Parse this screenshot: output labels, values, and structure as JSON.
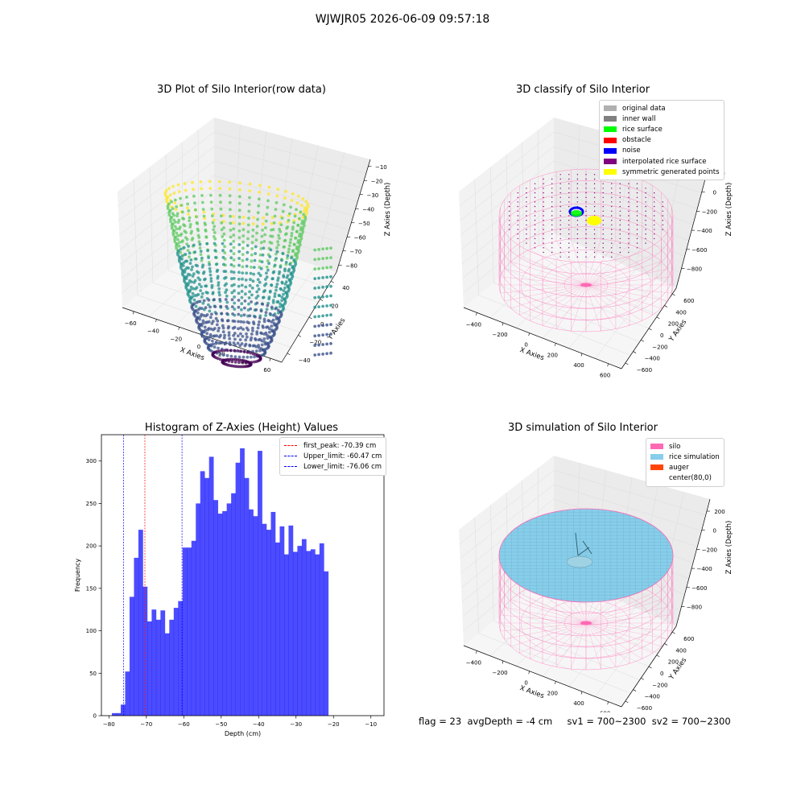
{
  "figure": {
    "suptitle": "WJWJR05 2026-06-09 09:57:18",
    "info_line": {
      "flag": "flag = 23",
      "avg_depth": "avgDepth = -4 cm",
      "sv1": "sv1 = 700~2300",
      "sv2": "sv2 = 700~2300"
    }
  },
  "chart_data": [
    {
      "id": "raw3d",
      "type": "scatter",
      "projection": "3d",
      "title": "3D Plot of Silo Interior(row data)",
      "xlabel": "X Axies",
      "ylabel": "Y Axies",
      "zlabel": "Z Axies (Depth)",
      "xlim": [
        -60,
        60
      ],
      "ylim": [
        -40,
        40
      ],
      "zlim": [
        -85,
        -5
      ],
      "x_ticks": [
        "−60",
        "−40",
        "−20",
        "0",
        "20",
        "40",
        "60"
      ],
      "y_ticks": [
        "−40",
        "−20",
        "0",
        "20",
        "40"
      ],
      "z_ticks": [
        "−10",
        "−20",
        "−30",
        "−40",
        "−50",
        "−60",
        "−70",
        "−80"
      ],
      "colormap": [
        "#440154",
        "#3b528b",
        "#21918c",
        "#5ec962",
        "#fde725"
      ],
      "surface": {
        "shape": "bowl",
        "rim_radius": 40,
        "rim_depth": -10,
        "bottom_radius": 8,
        "bottom_depth": -80,
        "side_lobe": {
          "x": 48,
          "y": 0,
          "depth_range": [
            -70,
            -25
          ]
        }
      }
    },
    {
      "id": "classify3d",
      "type": "scatter",
      "projection": "3d",
      "title": "3D classify of Silo Interior",
      "xlabel": "X Axies",
      "ylabel": "Y Axies",
      "zlabel": "Z Axies (Depth)",
      "xlim": [
        -500,
        700
      ],
      "ylim": [
        -600,
        600
      ],
      "zlim": [
        -800,
        200
      ],
      "x_ticks": [
        "−400",
        "−200",
        "0",
        "200",
        "400",
        "600"
      ],
      "y_ticks": [
        "−600",
        "−400",
        "−200",
        "0",
        "200",
        "400",
        "600"
      ],
      "z_ticks": [
        "200",
        "0",
        "−200",
        "−400",
        "−600",
        "−800"
      ],
      "legend": [
        {
          "label": "original data",
          "color": "#b0b0b0"
        },
        {
          "label": "inner wall",
          "color": "#808080"
        },
        {
          "label": "rice surface",
          "color": "#00ff00"
        },
        {
          "label": "obstacle",
          "color": "#ff0000"
        },
        {
          "label": "noise",
          "color": "#0000ff"
        },
        {
          "label": "interpolated rice surface",
          "color": "#800080"
        },
        {
          "label": "symmetric generated points",
          "color": "#ffff00"
        }
      ],
      "silo": {
        "center": [
          80,
          0
        ],
        "radius": 500,
        "top": 0,
        "bottom": -800,
        "color": "#ff69b4"
      }
    },
    {
      "id": "histogram",
      "type": "bar",
      "title": "Histogram of Z-Axies (Height) Values",
      "xlabel": "Depth (cm)",
      "ylabel": "Frequency",
      "bar_color": "#0000ff",
      "bar_alpha": 0.7,
      "xlim": [
        -82,
        -6.5
      ],
      "ylim": [
        0,
        331
      ],
      "x_ticks": [
        -80,
        -70,
        -60,
        -50,
        -40,
        -30,
        -20,
        -10
      ],
      "y_ticks": [
        0,
        50,
        100,
        150,
        200,
        250,
        300
      ],
      "bin_start": -79.2,
      "bin_width": 1.18,
      "values": [
        3,
        3,
        13,
        52,
        140,
        186,
        219,
        152,
        111,
        125,
        113,
        124,
        97,
        113,
        127,
        135,
        198,
        198,
        206,
        250,
        288,
        280,
        305,
        254,
        238,
        241,
        250,
        262,
        298,
        315,
        280,
        243,
        235,
        312,
        226,
        219,
        240,
        204,
        223,
        190,
        224,
        193,
        200,
        208,
        194,
        196,
        190,
        203,
        170
      ],
      "vlines": [
        {
          "label": "first_peak: -70.39 cm",
          "x": -70.39,
          "color": "#ff0000"
        },
        {
          "label": "Upper_limit: -60.47 cm",
          "x": -60.47,
          "color": "#0000ff"
        },
        {
          "label": "Lower_limit: -76.06 cm",
          "x": -76.06,
          "color": "#0000ff"
        }
      ]
    },
    {
      "id": "simulation3d",
      "type": "area",
      "projection": "3d",
      "title": "3D simulation of Silo Interior",
      "xlabel": "X Axies",
      "ylabel": "Y Axies",
      "zlabel": "Z Axies (Depth)",
      "xlim": [
        -500,
        700
      ],
      "ylim": [
        -600,
        600
      ],
      "zlim": [
        -800,
        200
      ],
      "x_ticks": [
        "−400",
        "−200",
        "0",
        "200",
        "400",
        "600"
      ],
      "y_ticks": [
        "−600",
        "−400",
        "−200",
        "0",
        "200",
        "400",
        "600"
      ],
      "z_ticks": [
        "200",
        "0",
        "−200",
        "−400",
        "−600",
        "−800"
      ],
      "legend": [
        {
          "label": "silo",
          "color": "#ff69b4"
        },
        {
          "label": "rice simulation",
          "color": "#87ceeb"
        },
        {
          "label": "auger",
          "color": "#ff4500"
        },
        {
          "label": "center(80,0)",
          "color": ""
        }
      ],
      "rice_surface_depth": -4
    }
  ]
}
